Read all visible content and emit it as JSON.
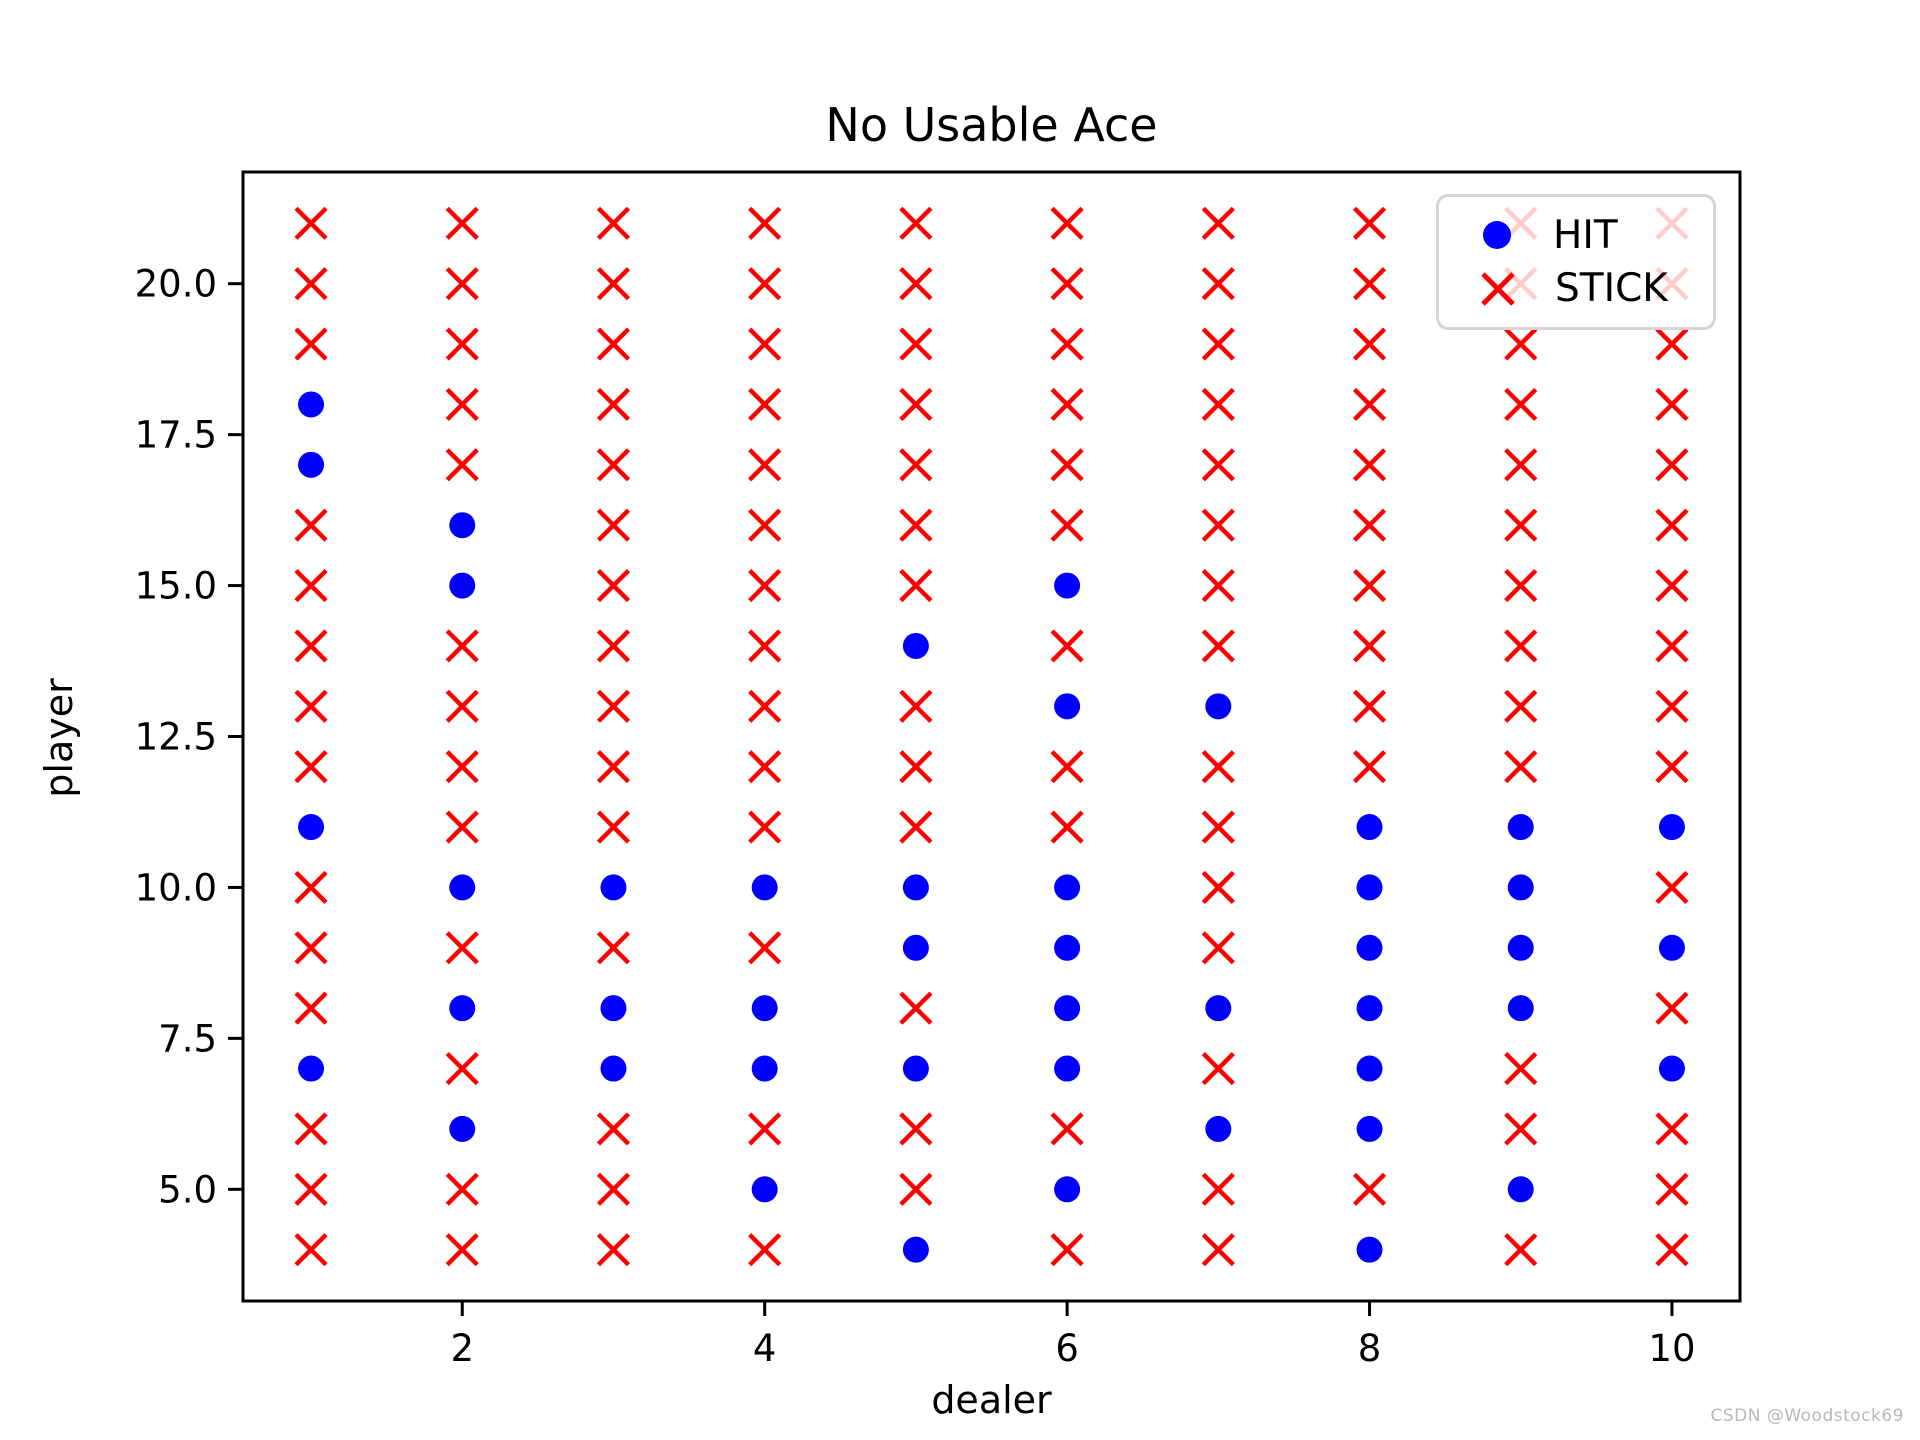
{
  "figure": {
    "watermark": "CSDN @Woodstock69"
  },
  "chart_data": {
    "type": "scatter",
    "title": "No Usable Ace",
    "xlabel": "dealer",
    "ylabel": "player",
    "xticks": [
      2,
      4,
      6,
      8,
      10
    ],
    "yticks": [
      5.0,
      7.5,
      10.0,
      12.5,
      15.0,
      17.5,
      20.0
    ],
    "xlim": [
      0.55,
      10.45
    ],
    "ylim": [
      3.15,
      21.85
    ],
    "grid": false,
    "dealers": [
      1,
      2,
      3,
      4,
      5,
      6,
      7,
      8,
      9,
      10
    ],
    "players": [
      4,
      5,
      6,
      7,
      8,
      9,
      10,
      11,
      12,
      13,
      14,
      15,
      16,
      17,
      18,
      19,
      20,
      21
    ],
    "policy_code": {
      "H": "HIT",
      "S": "STICK"
    },
    "policy_by_player": {
      "4": "SSSSHSSHSS",
      "5": "SSSHSHSSHS",
      "6": "SHSSSSHHSS",
      "7": "HSHHHHSHSH",
      "8": "SHHHSHHHHS",
      "9": "SSSSHHSHHH",
      "10": "SHHHHHSHHS",
      "11": "HSSSSSSHHH",
      "12": "SSSSSSSSSS",
      "13": "SSSSSHHSSS",
      "14": "SSSSHSSSSS",
      "15": "SHSSSHSSSS",
      "16": "SHSSSSSSSS",
      "17": "HSSSSSSSSS",
      "18": "HSSSSSSSSS",
      "19": "SSSSSSSSSS",
      "20": "SSSSSSSSSS",
      "21": "SSSSSSSSSS"
    },
    "colors": {
      "hit": "#0000ff",
      "stick": "#ff0000",
      "spine": "#000000",
      "tick_label": "#000000"
    },
    "legend": {
      "position": "upper right",
      "items": [
        {
          "label": "HIT",
          "marker": "circle",
          "color": "#0000ff"
        },
        {
          "label": "STICK",
          "marker": "x",
          "color": "#ff0000"
        }
      ]
    }
  }
}
